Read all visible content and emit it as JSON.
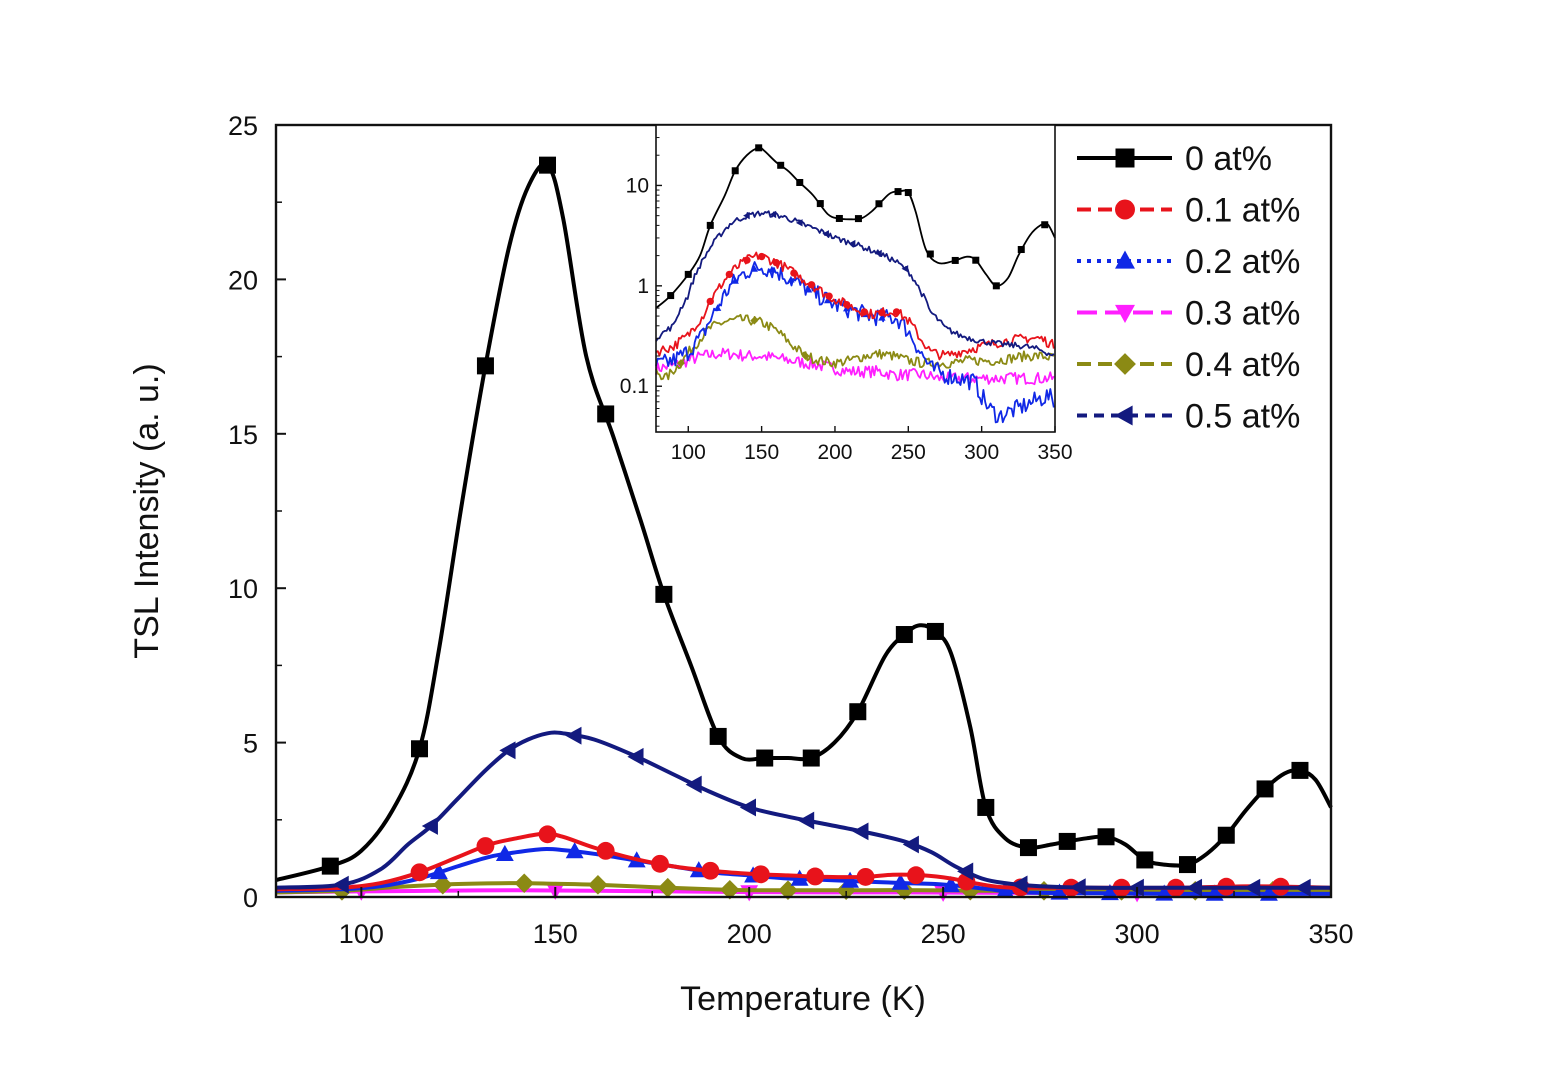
{
  "chart_data": [
    {
      "type": "line",
      "title": "",
      "xlabel": "Temperature (K)",
      "ylabel": "TSL Intensity (a. u.)",
      "xlim": [
        78,
        350
      ],
      "ylim": [
        0,
        25
      ],
      "xticks": [
        100,
        150,
        200,
        250,
        300,
        350
      ],
      "yticks": [
        0,
        5,
        10,
        15,
        20,
        25
      ],
      "grid": false,
      "legend_position": "top-right",
      "series": [
        {
          "name": "0 at%",
          "color": "#000000",
          "line": "solid",
          "marker": "square",
          "x": [
            78,
            92,
            100,
            108,
            115,
            120,
            126,
            132,
            138,
            143,
            148,
            152,
            158,
            165,
            172,
            178,
            185,
            192,
            198,
            204,
            210,
            216,
            222,
            228,
            235,
            240,
            244,
            248,
            252,
            257,
            261,
            266,
            272,
            278,
            282,
            287,
            292,
            297,
            302,
            307,
            313,
            318,
            323,
            328,
            333,
            338,
            342,
            346,
            350
          ],
          "y": [
            0.55,
            1.0,
            1.5,
            2.8,
            4.8,
            8.0,
            12.8,
            17.2,
            21.0,
            23.0,
            23.7,
            22.0,
            17.5,
            14.9,
            12.2,
            9.8,
            7.5,
            5.2,
            4.5,
            4.5,
            4.5,
            4.5,
            5.0,
            6.0,
            7.8,
            8.5,
            8.8,
            8.6,
            7.9,
            5.5,
            2.9,
            1.9,
            1.6,
            1.7,
            1.8,
            1.9,
            1.95,
            1.7,
            1.2,
            1.05,
            1.05,
            1.4,
            2.0,
            2.8,
            3.5,
            4.0,
            4.1,
            3.8,
            2.9
          ],
          "marker_x": [
            92,
            115,
            132,
            148,
            163,
            178,
            192,
            204,
            216,
            228,
            240,
            248,
            261,
            272,
            282,
            292,
            302,
            313,
            323,
            333,
            342
          ]
        },
        {
          "name": "0.1 at%",
          "color": "#e8131b",
          "line": "dash",
          "marker": "circle",
          "x": [
            78,
            95,
            105,
            115,
            125,
            133,
            140,
            147,
            152,
            160,
            170,
            180,
            190,
            200,
            210,
            220,
            230,
            237,
            245,
            252,
            258,
            265,
            275,
            290,
            310,
            330,
            350
          ],
          "y": [
            0.25,
            0.3,
            0.45,
            0.8,
            1.3,
            1.7,
            1.9,
            2.05,
            1.95,
            1.6,
            1.25,
            1.0,
            0.85,
            0.75,
            0.7,
            0.65,
            0.65,
            0.72,
            0.7,
            0.6,
            0.45,
            0.32,
            0.3,
            0.3,
            0.3,
            0.35,
            0.3
          ],
          "marker_x": [
            115,
            132,
            148,
            163,
            177,
            190,
            203,
            217,
            230,
            243,
            256,
            270,
            283,
            296,
            310,
            323,
            337
          ]
        },
        {
          "name": "0.2 at%",
          "color": "#1028e6",
          "line": "dot",
          "marker": "triangle-up",
          "x": [
            78,
            95,
            105,
            115,
            125,
            133,
            140,
            147,
            152,
            160,
            170,
            180,
            190,
            200,
            210,
            220,
            230,
            240,
            248,
            255,
            262,
            270,
            290,
            310,
            330,
            350
          ],
          "y": [
            0.2,
            0.25,
            0.35,
            0.6,
            1.0,
            1.3,
            1.45,
            1.55,
            1.52,
            1.4,
            1.2,
            1.0,
            0.8,
            0.7,
            0.6,
            0.55,
            0.5,
            0.45,
            0.42,
            0.35,
            0.25,
            0.15,
            0.12,
            0.1,
            0.1,
            0.1
          ],
          "marker_x": [
            120,
            137,
            155,
            171,
            187,
            201,
            213,
            226,
            239,
            252,
            266,
            280,
            293,
            307,
            320,
            334
          ]
        },
        {
          "name": "0.3 at%",
          "color": "#ff1fff",
          "line": "long-dash",
          "marker": "triangle-down",
          "x": [
            78,
            100,
            120,
            140,
            160,
            180,
            200,
            220,
            240,
            260,
            280,
            300,
            320,
            340,
            350
          ],
          "y": [
            0.15,
            0.18,
            0.2,
            0.22,
            0.2,
            0.18,
            0.16,
            0.15,
            0.15,
            0.14,
            0.13,
            0.13,
            0.12,
            0.12,
            0.12
          ],
          "marker_x": [
            100,
            150,
            200,
            250,
            300
          ]
        },
        {
          "name": "0.4 at%",
          "color": "#8b8a14",
          "line": "dash",
          "marker": "diamond",
          "x": [
            78,
            95,
            110,
            125,
            140,
            150,
            160,
            175,
            190,
            200,
            215,
            230,
            245,
            260,
            280,
            300,
            320,
            340,
            350
          ],
          "y": [
            0.15,
            0.2,
            0.33,
            0.42,
            0.45,
            0.43,
            0.4,
            0.32,
            0.25,
            0.22,
            0.22,
            0.22,
            0.22,
            0.2,
            0.2,
            0.2,
            0.2,
            0.2,
            0.2
          ],
          "marker_x": [
            95,
            121,
            142,
            161,
            179,
            195,
            210,
            225,
            240,
            257,
            276,
            296,
            315,
            335
          ]
        },
        {
          "name": "0.5 at%",
          "color": "#131a7f",
          "line": "short-dash",
          "marker": "triangle-left",
          "x": [
            78,
            95,
            105,
            112,
            118,
            125,
            132,
            138,
            143,
            148,
            152,
            160,
            170,
            180,
            190,
            200,
            210,
            220,
            230,
            240,
            247,
            253,
            260,
            266,
            275,
            290,
            310,
            330,
            350
          ],
          "y": [
            0.3,
            0.4,
            0.9,
            1.7,
            2.3,
            3.2,
            4.1,
            4.75,
            5.1,
            5.3,
            5.3,
            5.1,
            4.6,
            4.0,
            3.4,
            2.9,
            2.6,
            2.35,
            2.1,
            1.8,
            1.45,
            1.0,
            0.6,
            0.45,
            0.35,
            0.3,
            0.3,
            0.3,
            0.3
          ],
          "marker_x": [
            95,
            118,
            138,
            155,
            171,
            186,
            200,
            215,
            229,
            242,
            256,
            270,
            285,
            300,
            315,
            330,
            343
          ]
        }
      ]
    },
    {
      "type": "line",
      "title": "",
      "xlabel": "",
      "ylabel": "",
      "xlim": [
        78,
        350
      ],
      "ylim": [
        0.035,
        40
      ],
      "yscale": "log",
      "xticks": [
        100,
        150,
        200,
        250,
        300,
        350
      ],
      "yticks": [
        0.1,
        1,
        10
      ],
      "grid": false,
      "legend_position": "none",
      "series": [
        {
          "name": "0 at%",
          "color": "#000000",
          "marker": "square",
          "noise": 0,
          "x": [
            78,
            88,
            100,
            108,
            115,
            125,
            132,
            140,
            148,
            152,
            160,
            168,
            175,
            185,
            195,
            202,
            210,
            218,
            225,
            232,
            238,
            245,
            250,
            255,
            262,
            270,
            280,
            290,
            296,
            303,
            310,
            318,
            325,
            333,
            340,
            345,
            350
          ],
          "y": [
            0.6,
            0.8,
            1.3,
            2.0,
            4.0,
            8.0,
            14.0,
            20.0,
            23.7,
            22.0,
            17.0,
            14.0,
            11.0,
            8.0,
            5.2,
            4.7,
            4.6,
            4.7,
            5.5,
            7.0,
            8.4,
            8.8,
            8.5,
            5.5,
            2.3,
            1.7,
            1.75,
            1.95,
            1.8,
            1.3,
            1.0,
            1.2,
            2.0,
            3.2,
            4.0,
            4.1,
            3.0
          ],
          "marker_x": [
            88,
            100,
            115,
            132,
            148,
            163,
            176,
            190,
            203,
            216,
            230,
            243,
            250,
            265,
            282,
            296,
            310,
            327,
            343
          ]
        },
        {
          "name": "0.1 at%",
          "color": "#e8131b",
          "marker": "circle",
          "noise": 0.05,
          "x": [
            78,
            90,
            100,
            110,
            120,
            130,
            140,
            148,
            155,
            165,
            175,
            185,
            195,
            205,
            215,
            225,
            235,
            242,
            250,
            258,
            265,
            275,
            285,
            300,
            315,
            330,
            340,
            350
          ],
          "y": [
            0.22,
            0.25,
            0.32,
            0.5,
            0.9,
            1.4,
            1.8,
            2.0,
            1.85,
            1.55,
            1.25,
            1.0,
            0.8,
            0.68,
            0.58,
            0.52,
            0.55,
            0.55,
            0.45,
            0.3,
            0.22,
            0.2,
            0.22,
            0.25,
            0.28,
            0.3,
            0.3,
            0.25
          ],
          "marker_x": [
            115,
            128,
            140,
            150,
            160,
            172,
            184,
            196,
            208,
            220,
            232,
            242
          ]
        },
        {
          "name": "0.2 at%",
          "color": "#1028e6",
          "marker": "triangle-up",
          "noise": 0.09,
          "x": [
            78,
            90,
            100,
            110,
            120,
            130,
            140,
            150,
            160,
            170,
            180,
            190,
            200,
            210,
            220,
            232,
            242,
            250,
            258,
            265,
            275,
            285,
            295,
            300,
            305,
            312,
            318,
            325,
            335,
            345,
            350
          ],
          "y": [
            0.16,
            0.18,
            0.22,
            0.32,
            0.6,
            1.05,
            1.4,
            1.55,
            1.4,
            1.15,
            0.95,
            0.78,
            0.65,
            0.58,
            0.52,
            0.48,
            0.48,
            0.35,
            0.22,
            0.15,
            0.13,
            0.12,
            0.11,
            0.08,
            0.06,
            0.05,
            0.055,
            0.06,
            0.07,
            0.08,
            0.07
          ],
          "marker_x": [
            120,
            132,
            145,
            157,
            170,
            182,
            195,
            208,
            220,
            232
          ]
        },
        {
          "name": "0.3 at%",
          "color": "#ff1fff",
          "marker": "triangle-down",
          "noise": 0.06,
          "x": [
            78,
            90,
            100,
            110,
            120,
            130,
            140,
            150,
            160,
            170,
            180,
            190,
            200,
            210,
            220,
            230,
            240,
            250,
            260,
            270,
            280,
            290,
            300,
            310,
            320,
            330,
            340,
            350
          ],
          "y": [
            0.15,
            0.16,
            0.18,
            0.2,
            0.21,
            0.21,
            0.2,
            0.2,
            0.19,
            0.18,
            0.17,
            0.16,
            0.15,
            0.14,
            0.14,
            0.14,
            0.13,
            0.13,
            0.13,
            0.12,
            0.12,
            0.12,
            0.12,
            0.12,
            0.12,
            0.12,
            0.12,
            0.12
          ],
          "marker_x": []
        },
        {
          "name": "0.4 at%",
          "color": "#8b8a14",
          "marker": "diamond",
          "noise": 0.05,
          "x": [
            78,
            85,
            95,
            105,
            115,
            125,
            135,
            145,
            150,
            160,
            170,
            180,
            190,
            200,
            210,
            220,
            230,
            240,
            250,
            260,
            270,
            280,
            290,
            300,
            310,
            320,
            330,
            340,
            350
          ],
          "y": [
            0.14,
            0.12,
            0.17,
            0.26,
            0.38,
            0.44,
            0.46,
            0.45,
            0.43,
            0.36,
            0.26,
            0.2,
            0.18,
            0.17,
            0.18,
            0.2,
            0.21,
            0.2,
            0.18,
            0.17,
            0.17,
            0.17,
            0.18,
            0.18,
            0.18,
            0.19,
            0.2,
            0.2,
            0.19
          ],
          "marker_x": [
            95,
            145,
            180
          ]
        },
        {
          "name": "0.5 at%",
          "color": "#131a7f",
          "marker": "triangle-left",
          "noise": 0.03,
          "x": [
            78,
            90,
            100,
            110,
            120,
            130,
            140,
            150,
            160,
            170,
            180,
            190,
            200,
            210,
            220,
            230,
            240,
            250,
            258,
            265,
            275,
            285,
            300,
            315,
            330,
            340,
            350
          ],
          "y": [
            0.3,
            0.4,
            0.8,
            1.8,
            3.0,
            4.3,
            5.0,
            5.3,
            5.1,
            4.6,
            4.0,
            3.5,
            3.0,
            2.7,
            2.4,
            2.1,
            1.8,
            1.4,
            0.9,
            0.55,
            0.38,
            0.32,
            0.28,
            0.26,
            0.25,
            0.23,
            0.2
          ],
          "marker_x": [
            140,
            158,
            176,
            194,
            212,
            230,
            248
          ]
        }
      ]
    }
  ]
}
